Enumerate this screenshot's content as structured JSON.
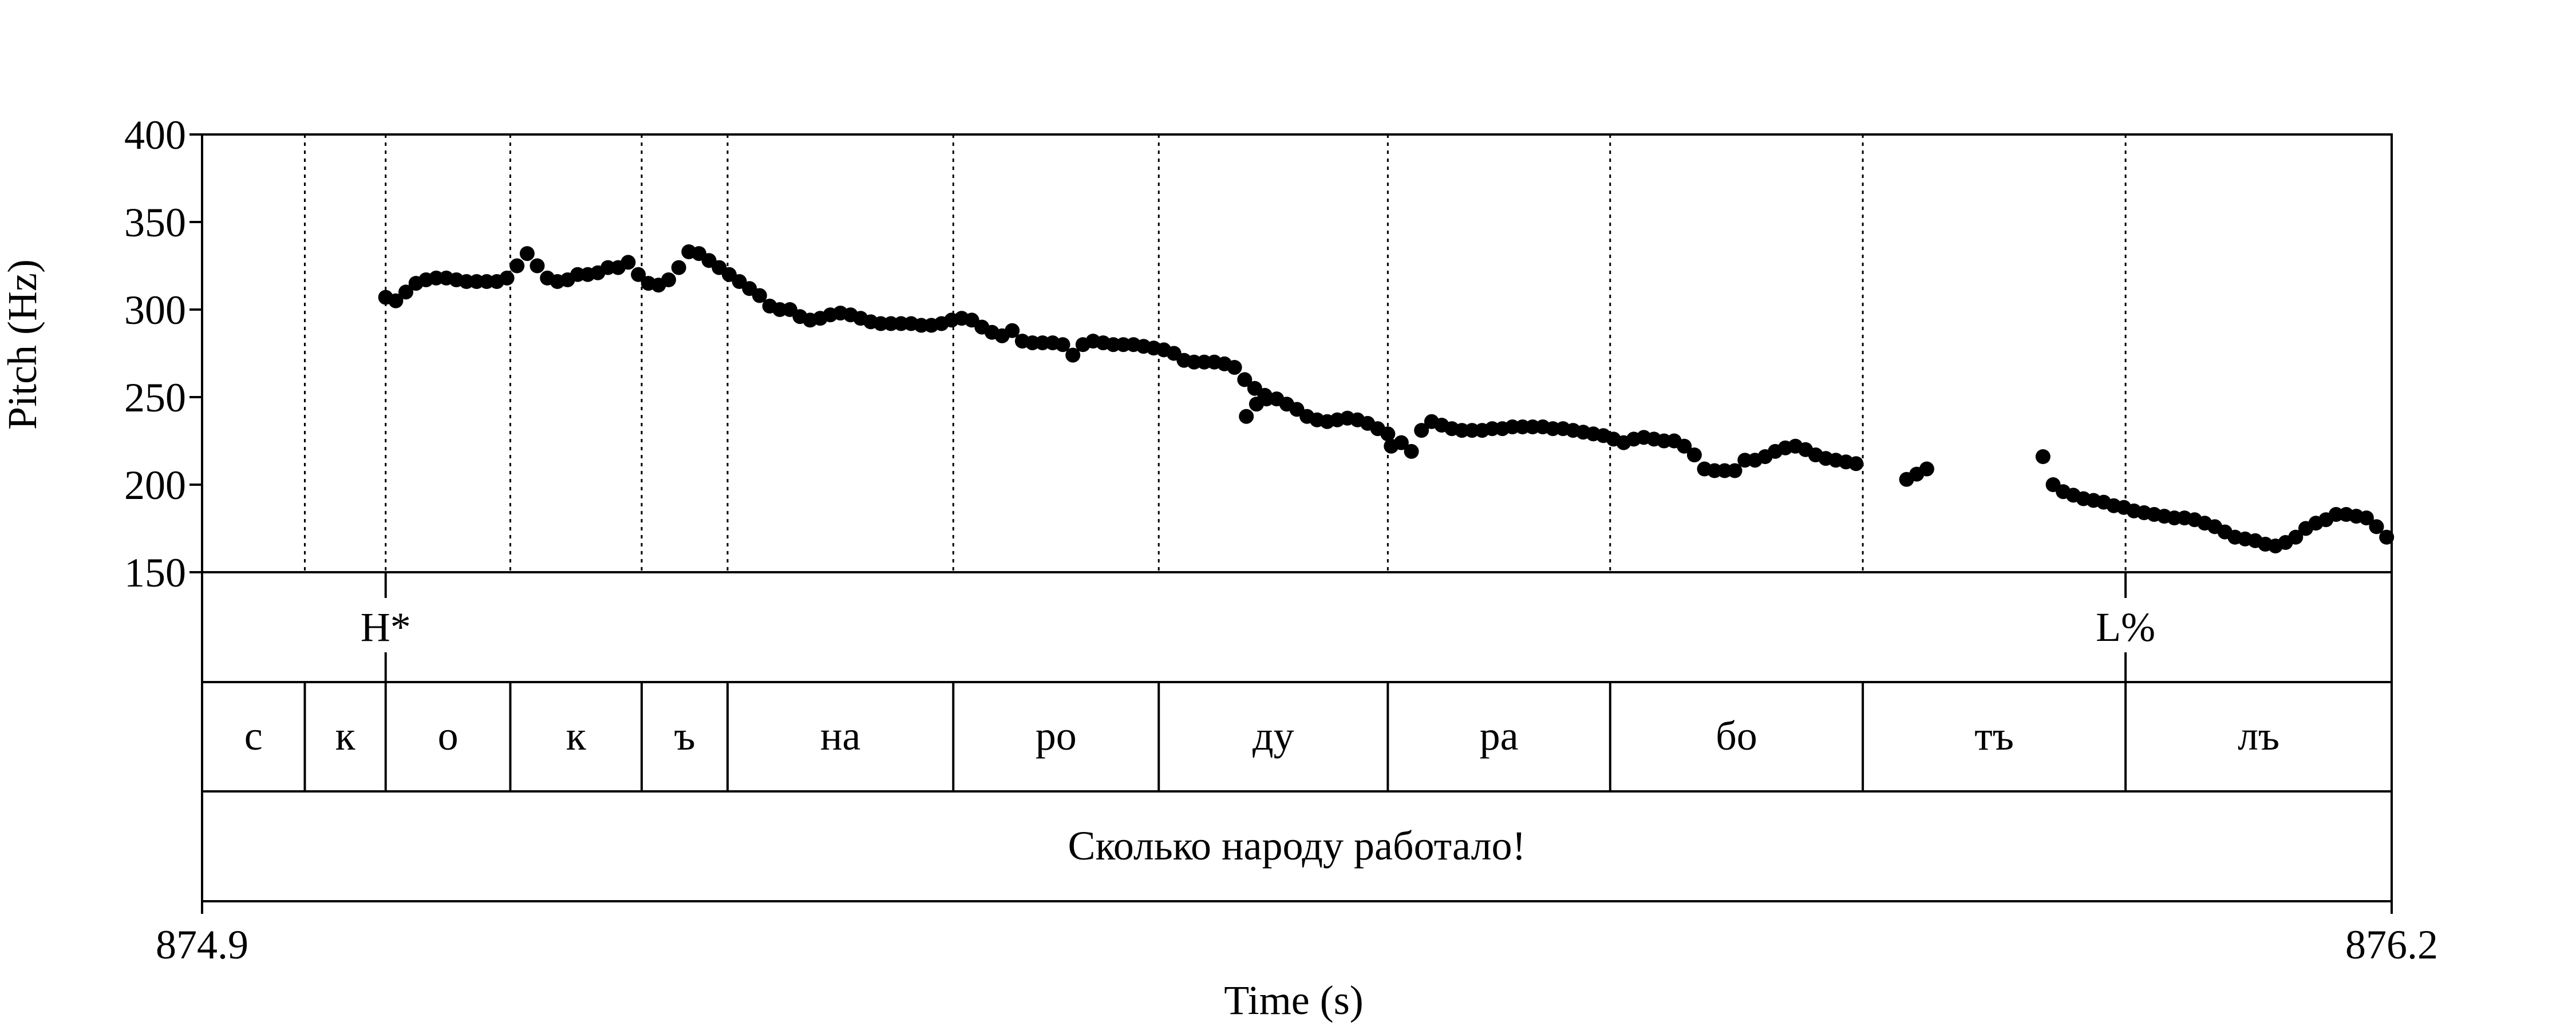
{
  "chart_data": {
    "type": "scatter",
    "xlabel": "Time (s)",
    "ylabel": "Pitch (Hz)",
    "xlim": [
      874.9,
      876.2
    ],
    "ylim": [
      150,
      400
    ],
    "x_tick_labels": [
      "874.9",
      "876.2"
    ],
    "y_tick_labels": [
      "150",
      "200",
      "250",
      "300",
      "350",
      "400"
    ],
    "y_ticks": [
      150,
      200,
      250,
      300,
      350,
      400
    ],
    "marker_color": "#000000",
    "tones_tier": [
      {
        "label": "H*",
        "time": 875.009
      },
      {
        "label": "L%",
        "time": 876.042
      }
    ],
    "syllable_tier": [
      {
        "label": "с",
        "start": 874.9,
        "end": 874.961
      },
      {
        "label": "к",
        "start": 874.961,
        "end": 875.009
      },
      {
        "label": "о",
        "start": 875.009,
        "end": 875.083
      },
      {
        "label": "к",
        "start": 875.083,
        "end": 875.161
      },
      {
        "label": "ъ",
        "start": 875.161,
        "end": 875.212
      },
      {
        "label": "на",
        "start": 875.212,
        "end": 875.346
      },
      {
        "label": "ро",
        "start": 875.346,
        "end": 875.468
      },
      {
        "label": "ду",
        "start": 875.468,
        "end": 875.604
      },
      {
        "label": "ра",
        "start": 875.604,
        "end": 875.736
      },
      {
        "label": "бо",
        "start": 875.736,
        "end": 875.886
      },
      {
        "label": "тъ",
        "start": 875.886,
        "end": 876.042
      },
      {
        "label": "лъ",
        "start": 876.042,
        "end": 876.2
      }
    ],
    "sentence_tier": [
      {
        "label": "Сколько народу работало!",
        "start": 874.9,
        "end": 876.2
      }
    ],
    "segments": [
      {
        "x": [
          875.009,
          875.015,
          875.021,
          875.027,
          875.033,
          875.039,
          875.045,
          875.051,
          875.057,
          875.063,
          875.069,
          875.075,
          875.081,
          875.087,
          875.093,
          875.099,
          875.105,
          875.111,
          875.117,
          875.123,
          875.129,
          875.135,
          875.141,
          875.147,
          875.153,
          875.159,
          875.165,
          875.171,
          875.177,
          875.183,
          875.189,
          875.195,
          875.201,
          875.207,
          875.213,
          875.219,
          875.225,
          875.231,
          875.237,
          875.243,
          875.249,
          875.255,
          875.261,
          875.267,
          875.273,
          875.279,
          875.285,
          875.291,
          875.297,
          875.303,
          875.309,
          875.315,
          875.321,
          875.327,
          875.333,
          875.339,
          875.345,
          875.351,
          875.357,
          875.363,
          875.369,
          875.375,
          875.381,
          875.387,
          875.393,
          875.399,
          875.405,
          875.411,
          875.417,
          875.423,
          875.429,
          875.435,
          875.441,
          875.447,
          875.453,
          875.459,
          875.465,
          875.471,
          875.477,
          875.483
        ],
        "y": [
          307,
          305,
          310,
          315,
          317,
          318,
          318,
          317,
          316,
          316,
          316,
          316,
          318,
          325,
          332,
          325,
          318,
          316,
          317,
          320,
          320,
          321,
          324,
          324,
          327,
          320,
          315,
          314,
          317,
          324,
          333,
          332,
          328,
          324,
          320,
          316,
          312,
          308,
          302,
          300,
          300,
          296,
          294,
          295,
          297,
          298,
          297,
          295,
          293,
          292,
          292,
          292,
          292,
          291,
          291,
          292,
          294,
          295,
          294,
          290,
          287,
          285,
          288,
          282,
          281,
          281,
          281,
          280,
          274,
          280,
          282,
          281,
          280,
          280,
          280,
          279,
          278,
          277,
          275,
          271
        ]
      },
      {
        "x": [
          875.489,
          875.495,
          875.501,
          875.507,
          875.513
        ],
        "y": [
          270,
          270,
          270,
          269,
          267
        ]
      },
      {
        "x": [
          875.519,
          875.525,
          875.531
        ],
        "y": [
          260,
          255,
          251
        ]
      },
      {
        "x": [
          875.52,
          875.526,
          875.532,
          875.538,
          875.544,
          875.55,
          875.556,
          875.562,
          875.568,
          875.574,
          875.58,
          875.586,
          875.592,
          875.598,
          875.604
        ],
        "y": [
          239,
          246,
          249,
          249,
          246,
          243,
          239,
          237,
          236,
          237,
          238,
          237,
          235,
          232,
          229
        ]
      },
      {
        "x": [
          875.606,
          875.612,
          875.618,
          875.624,
          875.63,
          875.636,
          875.642,
          875.648,
          875.654,
          875.66,
          875.666,
          875.672,
          875.678,
          875.684,
          875.69,
          875.696,
          875.702,
          875.708,
          875.714,
          875.72,
          875.726,
          875.732,
          875.738,
          875.744,
          875.75,
          875.756,
          875.762,
          875.768,
          875.774,
          875.78,
          875.786,
          875.792,
          875.798,
          875.804,
          875.81,
          875.816,
          875.822,
          875.828,
          875.834,
          875.84,
          875.846,
          875.852,
          875.858,
          875.864,
          875.87,
          875.876,
          875.882
        ],
        "y": [
          222,
          224,
          219,
          231,
          236,
          234,
          232,
          231,
          231,
          231,
          232,
          232,
          233,
          233,
          233,
          233,
          232,
          232,
          231,
          230,
          229,
          228,
          226,
          224,
          226,
          227,
          226,
          225,
          225,
          222,
          217,
          209,
          208,
          208,
          208,
          214,
          214,
          216,
          219,
          221,
          222,
          220,
          217,
          215,
          214,
          213,
          212
        ]
      },
      {
        "x": [
          875.912,
          875.918,
          875.924
        ],
        "y": [
          203,
          206,
          209
        ]
      },
      {
        "x": [
          875.993,
          875.999,
          876.005,
          876.011,
          876.017,
          876.023,
          876.029,
          876.035,
          876.041,
          876.047,
          876.053,
          876.059,
          876.065,
          876.071,
          876.077,
          876.083,
          876.089,
          876.095,
          876.101,
          876.107,
          876.113,
          876.119,
          876.125,
          876.131,
          876.137,
          876.143,
          876.149,
          876.155,
          876.161,
          876.167,
          876.173,
          876.179,
          876.185,
          876.191,
          876.197
        ],
        "y": [
          216,
          200,
          196,
          194,
          192,
          191,
          190,
          188,
          187,
          185,
          184,
          183,
          182,
          181,
          181,
          180,
          178,
          176,
          173,
          170,
          169,
          168,
          166,
          165,
          167,
          170,
          175,
          178,
          180,
          183,
          183,
          182,
          181,
          176,
          170
        ]
      }
    ]
  }
}
